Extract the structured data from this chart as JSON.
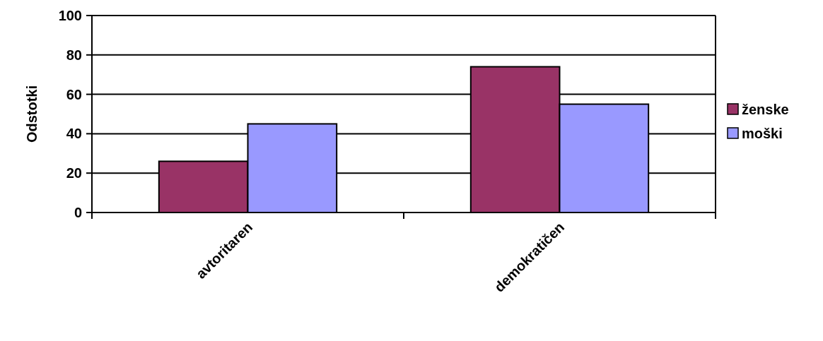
{
  "chart_data": {
    "type": "bar",
    "ylabel": "Odstotki",
    "categories": [
      "avtoritaren",
      "demokratičen"
    ],
    "series": [
      {
        "name": "ženske",
        "color": "#993366",
        "values": [
          26,
          74
        ]
      },
      {
        "name": "moški",
        "color": "#9999ff",
        "values": [
          45,
          55
        ]
      }
    ],
    "ylim": [
      0,
      100
    ],
    "yticks": [
      0,
      20,
      40,
      60,
      80,
      100
    ],
    "grid": "y",
    "legend": "right"
  }
}
